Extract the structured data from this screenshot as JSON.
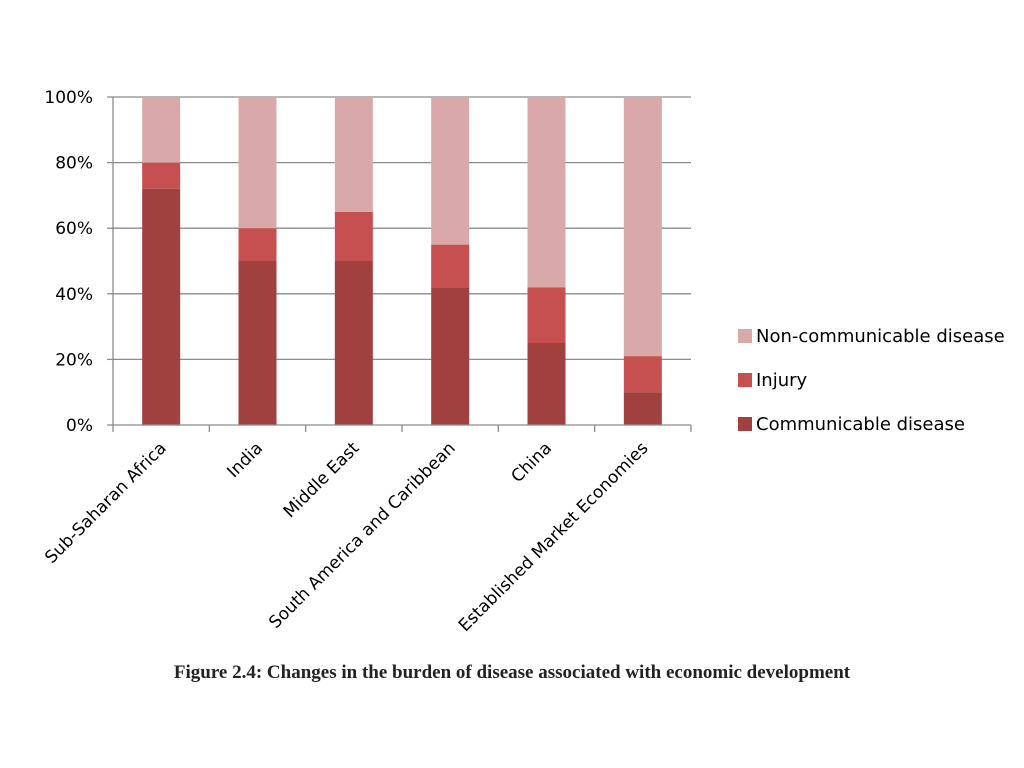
{
  "caption": "Figure 2.4: Changes in the burden of disease associated with economic development",
  "chart_data": {
    "type": "bar",
    "stacked": true,
    "categories": [
      "Sub-Saharan Africa",
      "India",
      "Middle East",
      "South America and Caribbean",
      "China",
      "Established Market Economies"
    ],
    "series": [
      {
        "name": "Communicable disease",
        "color": "#a0403f",
        "values": [
          72,
          50,
          50,
          42,
          25,
          10
        ]
      },
      {
        "name": "Injury",
        "color": "#c65050",
        "values": [
          8,
          10,
          15,
          13,
          17,
          11
        ]
      },
      {
        "name": "Non-communicable disease",
        "color": "#d9a8a8",
        "values": [
          20,
          40,
          35,
          45,
          58,
          79
        ]
      }
    ],
    "ylim": [
      0,
      100
    ],
    "yticks": [
      "0%",
      "20%",
      "40%",
      "60%",
      "80%",
      "100%"
    ],
    "grid": true,
    "legend_position": "right",
    "legend_order": [
      "Non-communicable disease",
      "Injury",
      "Communicable disease"
    ]
  }
}
